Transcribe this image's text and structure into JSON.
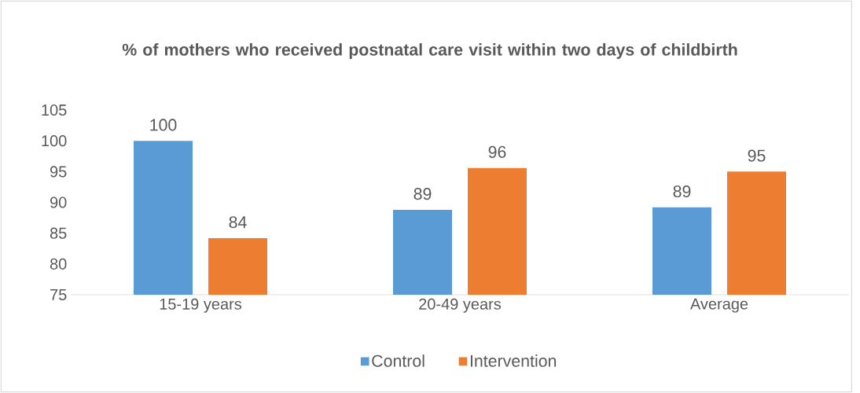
{
  "chart_data": {
    "type": "bar",
    "title": "% of mothers who received postnatal care visit within two days of childbirth",
    "categories": [
      "15-19 years",
      "20-49 years",
      "Average"
    ],
    "series": [
      {
        "name": "Control",
        "color": "#5b9bd5",
        "values": [
          100,
          88.8,
          89.2
        ],
        "value_labels": [
          "100",
          "89",
          "89"
        ]
      },
      {
        "name": "Intervention",
        "color": "#ed7d31",
        "values": [
          84.2,
          95.6,
          95.0
        ],
        "value_labels": [
          "84",
          "96",
          "95"
        ]
      }
    ],
    "ylim": [
      75,
      105
    ],
    "yticks": [
      75,
      80,
      85,
      90,
      95,
      100,
      105
    ],
    "legend": "bottom"
  }
}
